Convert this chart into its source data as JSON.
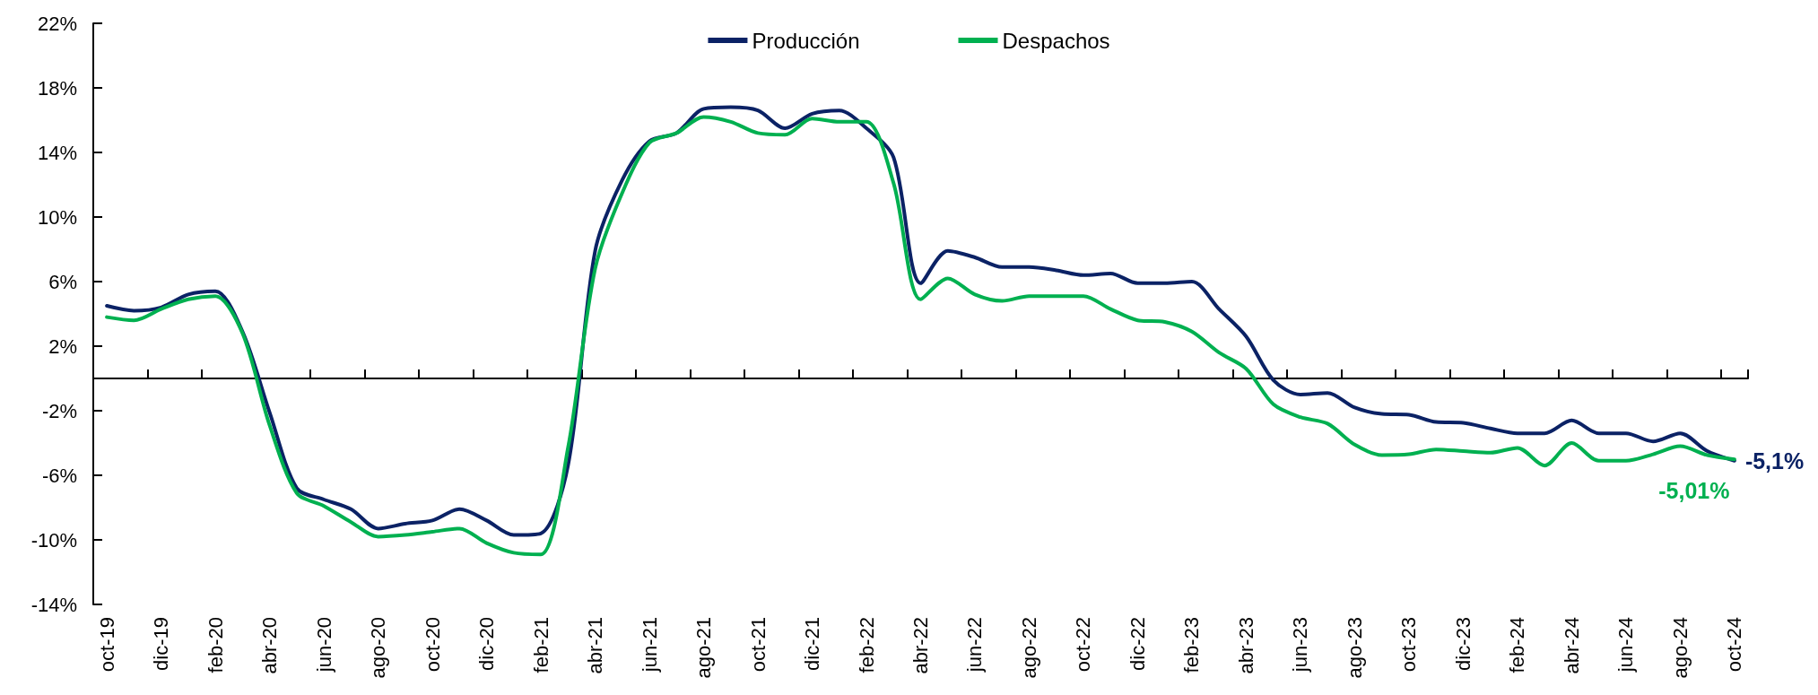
{
  "chart_data": {
    "type": "line",
    "categories": [
      "oct-19",
      null,
      "dic-19",
      null,
      "feb-20",
      null,
      "abr-20",
      null,
      "jun-20",
      null,
      "ago-20",
      null,
      "oct-20",
      null,
      "dic-20",
      null,
      "feb-21",
      null,
      "abr-21",
      null,
      "jun-21",
      null,
      "ago-21",
      null,
      "oct-21",
      null,
      "dic-21",
      null,
      "feb-22",
      null,
      "abr-22",
      null,
      "jun-22",
      null,
      "ago-22",
      null,
      "oct-22",
      null,
      "dic-22",
      null,
      "feb-23",
      null,
      "abr-23",
      null,
      "jun-23",
      null,
      "ago-23",
      null,
      "oct-23",
      null,
      "dic-23",
      null,
      "feb-24",
      null,
      "abr-24",
      null,
      "jun-24",
      null,
      "ago-24",
      null,
      "oct-24"
    ],
    "series": [
      {
        "name": "Producción",
        "color": "#0b2265",
        "values": [
          4.5,
          4.2,
          4.4,
          5.2,
          5.4,
          2.9,
          -2.1,
          -6.8,
          -7.5,
          -8.1,
          -9.3,
          -9.0,
          -8.8,
          -8.1,
          -8.8,
          -9.7,
          -9.6,
          -5.4,
          7.9,
          12.3,
          14.7,
          15.2,
          16.7,
          16.8,
          16.6,
          15.5,
          16.4,
          16.6,
          15.5,
          13.7,
          5.9,
          7.9,
          7.5,
          6.9,
          6.9,
          6.7,
          6.4,
          6.5,
          5.9,
          5.9,
          6.0,
          4.3,
          2.6,
          -0.1,
          -1.0,
          -0.9,
          -1.8,
          -2.2,
          -2.25,
          -2.7,
          -2.75,
          -3.1,
          -3.4,
          -3.4,
          -2.6,
          -3.4,
          -3.4,
          -3.9,
          -3.4,
          -4.5,
          -5.1
        ],
        "value_labels": [
          null,
          null,
          null,
          null,
          null,
          null,
          null,
          null,
          null,
          null,
          null,
          null,
          null,
          null,
          null,
          null,
          null,
          null,
          null,
          null,
          null,
          null,
          null,
          null,
          null,
          null,
          null,
          null,
          null,
          null,
          null,
          null,
          null,
          null,
          null,
          null,
          null,
          null,
          null,
          null,
          null,
          null,
          null,
          null,
          null,
          null,
          null,
          null,
          null,
          null,
          null,
          null,
          null,
          null,
          null,
          null,
          null,
          null,
          null,
          null,
          "-5,1%"
        ]
      },
      {
        "name": "Despachos",
        "color": "#00b050",
        "values": [
          3.8,
          3.6,
          4.3,
          4.9,
          5.1,
          2.8,
          -2.9,
          -7.1,
          -7.9,
          -8.9,
          -9.8,
          -9.7,
          -9.5,
          -9.3,
          -10.2,
          -10.8,
          -10.9,
          -4.3,
          6.8,
          11.5,
          14.6,
          15.2,
          16.2,
          15.9,
          15.2,
          15.1,
          16.1,
          15.9,
          15.9,
          12.1,
          4.9,
          6.2,
          5.2,
          4.8,
          5.1,
          5.1,
          5.1,
          4.3,
          3.6,
          3.5,
          2.9,
          1.6,
          0.6,
          -1.6,
          -2.4,
          -2.8,
          -4.1,
          -4.75,
          -4.7,
          -4.4,
          -4.5,
          -4.6,
          -4.3,
          -5.4,
          -4.0,
          -5.1,
          -5.1,
          -4.7,
          -4.2,
          -4.75,
          -5.01
        ],
        "value_labels": [
          null,
          null,
          null,
          null,
          null,
          null,
          null,
          null,
          null,
          null,
          null,
          null,
          null,
          null,
          null,
          null,
          null,
          null,
          null,
          null,
          null,
          null,
          null,
          null,
          null,
          null,
          null,
          null,
          null,
          null,
          null,
          null,
          null,
          null,
          null,
          null,
          null,
          null,
          null,
          null,
          null,
          null,
          null,
          null,
          null,
          null,
          null,
          null,
          null,
          null,
          null,
          null,
          null,
          null,
          null,
          null,
          null,
          null,
          null,
          null,
          "-5,01%"
        ]
      }
    ],
    "ylim": [
      -14,
      22
    ],
    "yticks": [
      {
        "value": -14,
        "label": "-14%"
      },
      {
        "value": -10,
        "label": "-10%"
      },
      {
        "value": -6,
        "label": "-6%"
      },
      {
        "value": -2,
        "label": "-2%"
      },
      {
        "value": 2,
        "label": "2%"
      },
      {
        "value": 6,
        "label": "6%"
      },
      {
        "value": 10,
        "label": "10%"
      },
      {
        "value": 14,
        "label": "14%"
      },
      {
        "value": 18,
        "label": "18%"
      },
      {
        "value": 22,
        "label": "22%"
      }
    ],
    "legend": "top",
    "marker": "none"
  }
}
